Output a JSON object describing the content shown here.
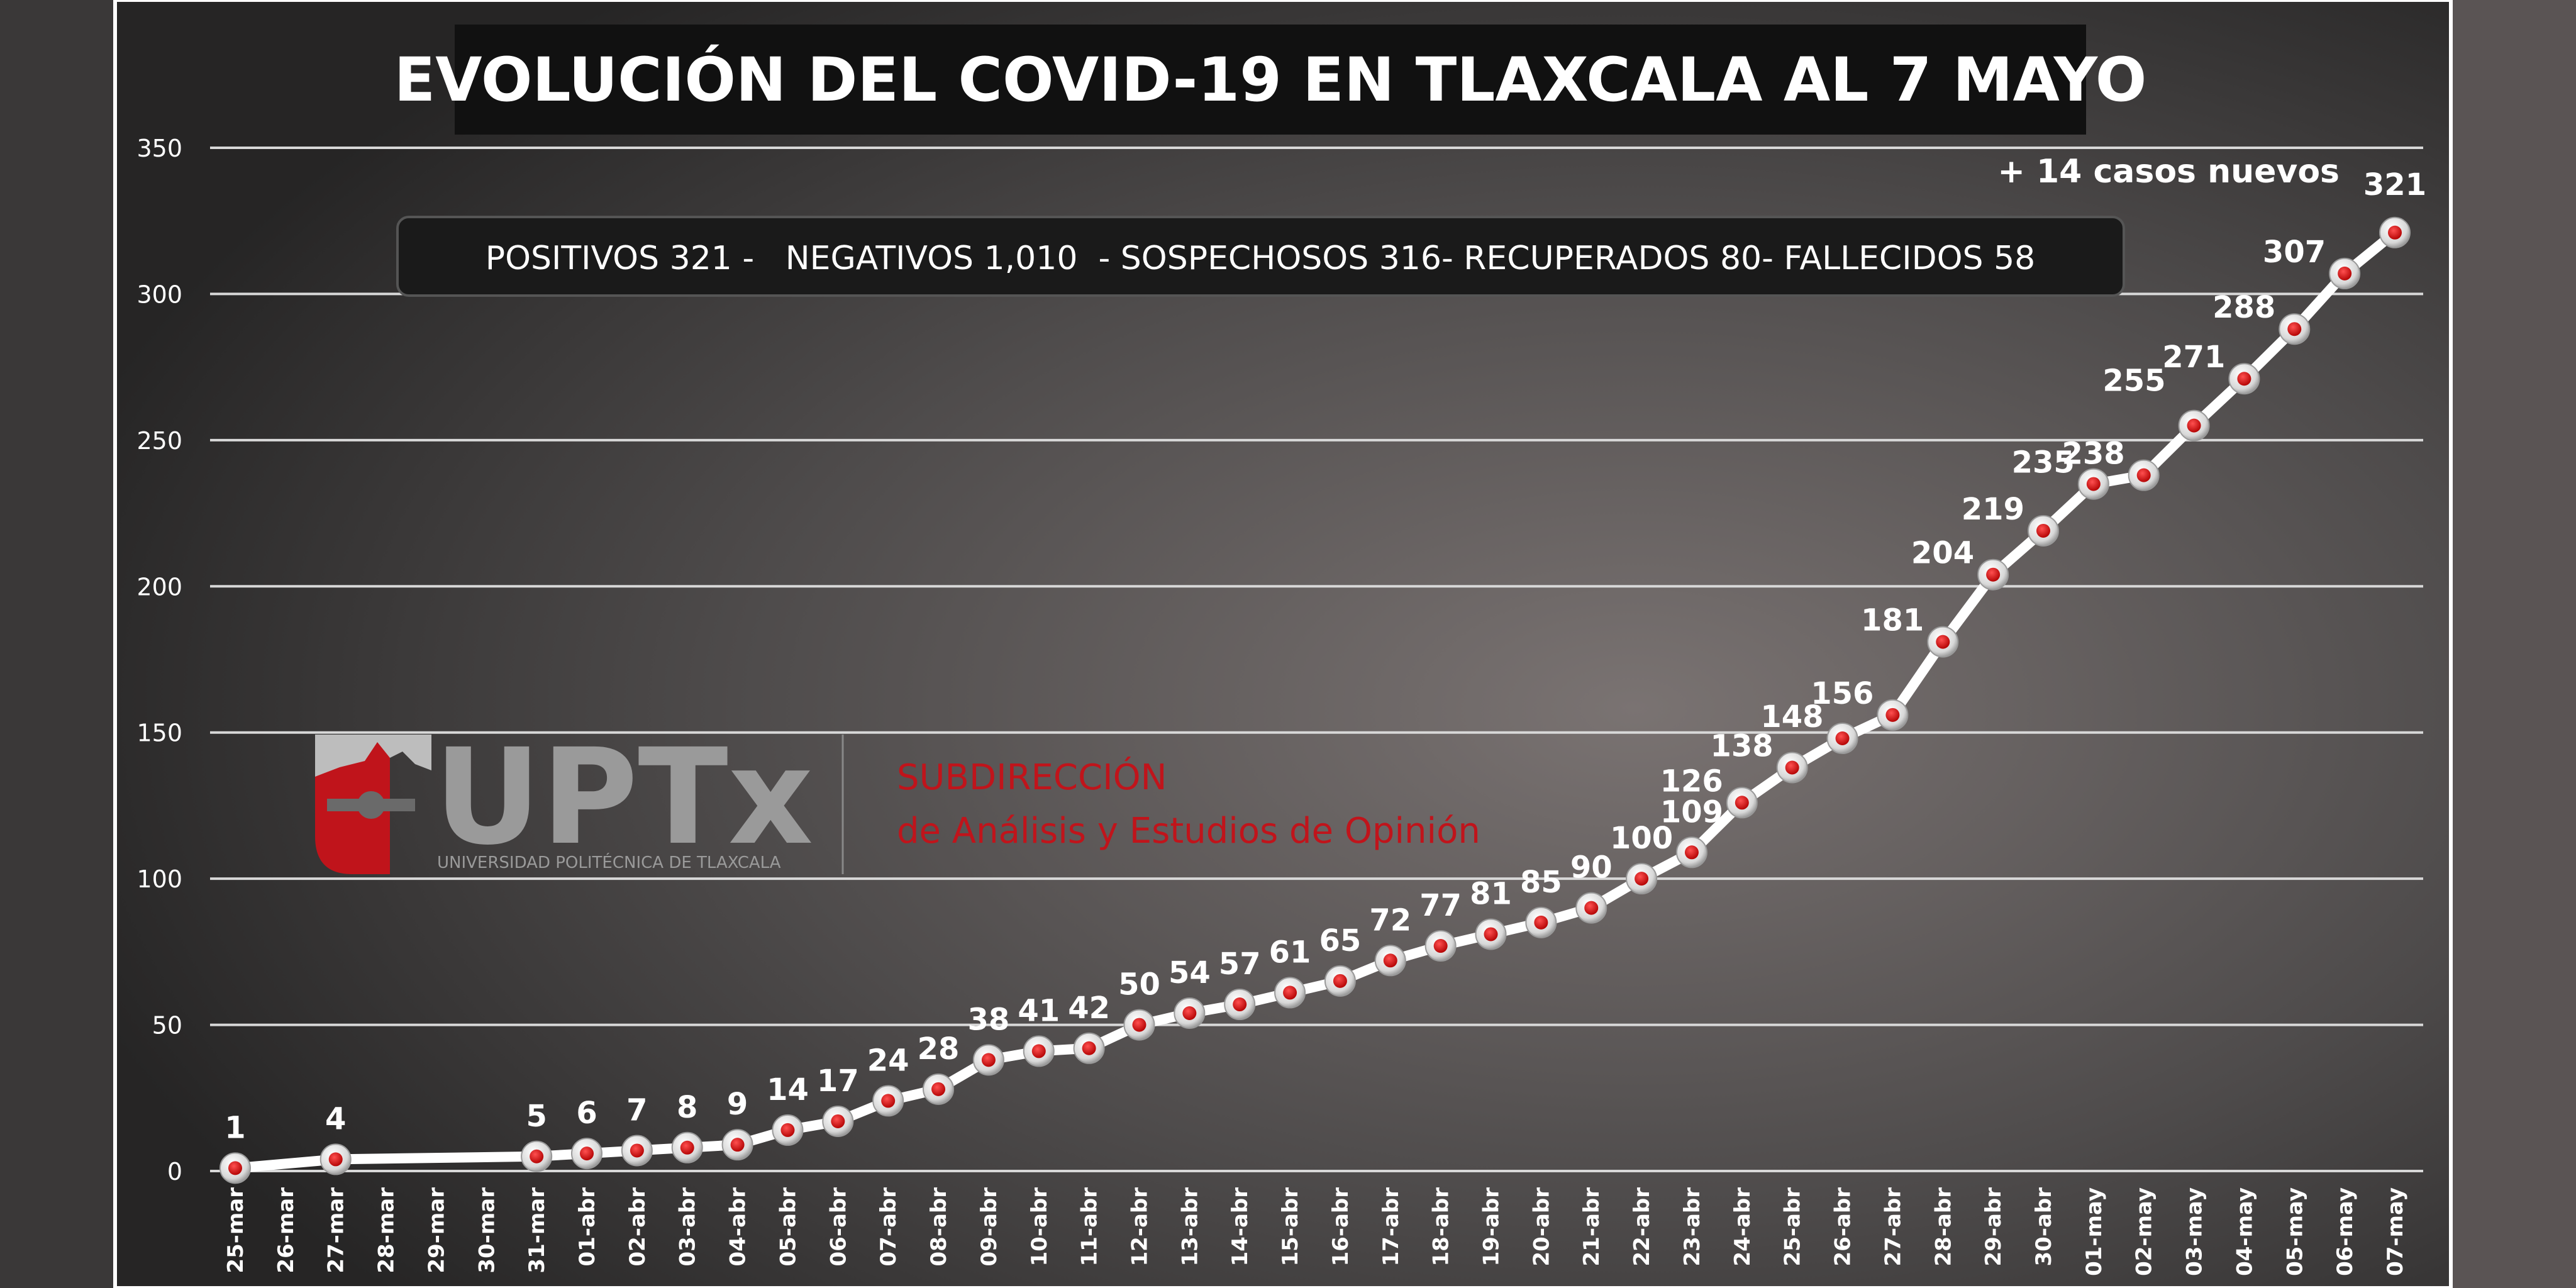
{
  "chart_data": {
    "type": "line",
    "title": "EVOLUCIÓN DEL COVID-19 EN TLAXCALA AL 7 MAYO",
    "subtitle": "POSITIVOS 321 -   NEGATIVOS 1,010  - SOSPECHOSOS 316- RECUPERADOS 80- FALLECIDOS 58",
    "annotation": "+ 14 casos nuevos",
    "xlabel": "",
    "ylabel": "",
    "ylim": [
      0,
      350
    ],
    "yticks": [
      0,
      50,
      100,
      150,
      200,
      250,
      300,
      350
    ],
    "grid": true,
    "categories": [
      "25-mar",
      "26-mar",
      "27-mar",
      "28-mar",
      "29-mar",
      "30-mar",
      "31-mar",
      "01-abr",
      "02-abr",
      "03-abr",
      "04-abr",
      "05-abr",
      "06-abr",
      "07-abr",
      "08-abr",
      "09-abr",
      "10-abr",
      "11-abr",
      "12-abr",
      "13-abr",
      "14-abr",
      "15-abr",
      "16-abr",
      "17-abr",
      "18-abr",
      "19-abr",
      "20-abr",
      "21-abr",
      "22-abr",
      "23-abr",
      "24-abr",
      "25-abr",
      "26-abr",
      "27-abr",
      "28-abr",
      "29-abr",
      "30-abr",
      "01-may",
      "02-may",
      "03-may",
      "04-may",
      "05-may",
      "06-may",
      "07-may"
    ],
    "values": [
      1,
      null,
      4,
      null,
      null,
      null,
      5,
      6,
      7,
      8,
      9,
      14,
      17,
      24,
      28,
      38,
      41,
      42,
      50,
      54,
      57,
      61,
      65,
      72,
      77,
      81,
      85,
      90,
      100,
      109,
      126,
      138,
      148,
      156,
      181,
      204,
      219,
      235,
      238,
      255,
      271,
      288,
      307,
      321
    ],
    "colors": {
      "line": "#ffffff",
      "marker": "#d01010",
      "label": "#ffffff"
    }
  },
  "logo": {
    "name": "UPTx",
    "tagline": "UNIVERSIDAD POLITÉCNICA DE TLAXCALA",
    "dept_line1": "SUBDIRECCIÓN",
    "dept_line2": "de Análisis y Estudios de Opinión",
    "accent": "#c0141b"
  }
}
